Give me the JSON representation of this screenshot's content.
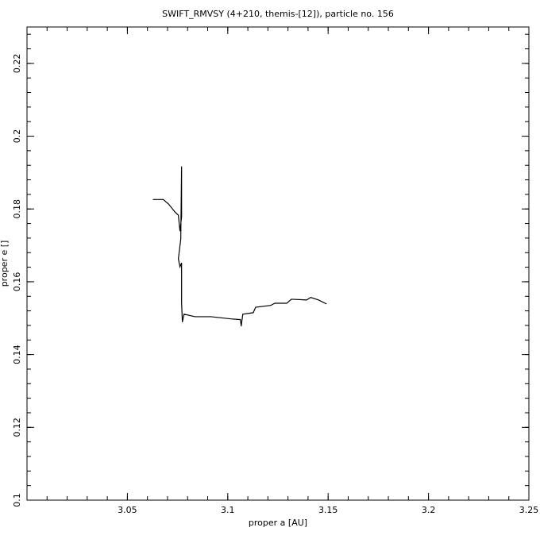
{
  "chart_data": {
    "type": "line",
    "title": "SWIFT_RMVSY (4+210, themis-[12]), particle no. 156",
    "x_label": "proper a [AU]",
    "y_label": "proper e []",
    "xlim": [
      3.0,
      3.25
    ],
    "xticks": [
      3.05,
      3.1,
      3.15,
      3.2,
      3.25
    ],
    "ylim": [
      0.1,
      0.23
    ],
    "yticks": [
      0.1,
      0.12,
      0.14,
      0.16,
      0.18,
      0.2,
      0.22
    ],
    "color": "#000000",
    "x": [
      3.0627,
      3.0679,
      3.0706,
      3.0738,
      3.0754,
      3.0762,
      3.077,
      3.077,
      3.0766,
      3.0754,
      3.0762,
      3.077,
      3.077,
      3.0774,
      3.0782,
      3.0837,
      3.0917,
      3.1016,
      3.1063,
      3.1067,
      3.1075,
      3.1127,
      3.1139,
      3.1214,
      3.1234,
      3.1294,
      3.1317,
      3.1393,
      3.1413,
      3.1452,
      3.1492
    ],
    "values": [
      0.1826,
      0.1826,
      0.1813,
      0.1791,
      0.1783,
      0.1739,
      0.1778,
      0.1917,
      0.1717,
      0.1663,
      0.1641,
      0.1652,
      0.1543,
      0.1489,
      0.1511,
      0.1504,
      0.1504,
      0.1498,
      0.1496,
      0.1478,
      0.1511,
      0.1515,
      0.153,
      0.1535,
      0.1541,
      0.1541,
      0.1552,
      0.155,
      0.1557,
      0.155,
      0.1539
    ]
  }
}
